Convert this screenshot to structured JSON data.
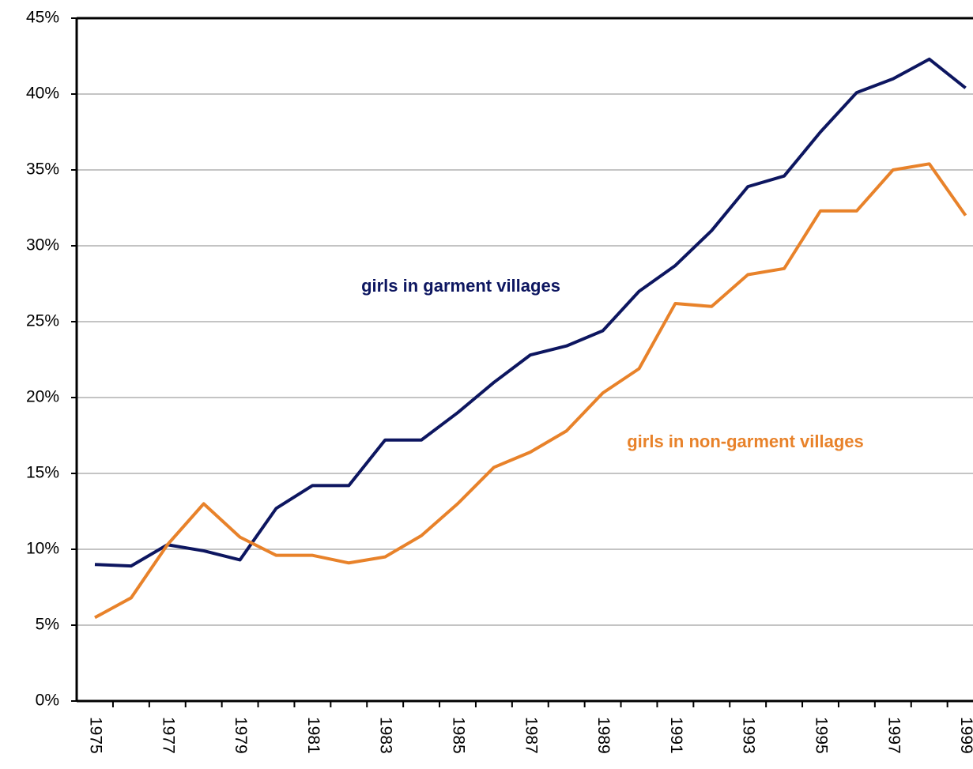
{
  "chart_data": {
    "type": "line",
    "categories": [
      "1975",
      null,
      "1977",
      null,
      "1979",
      null,
      "1981",
      null,
      "1983",
      null,
      "1985",
      null,
      "1987",
      null,
      "1989",
      null,
      "1991",
      null,
      "1993",
      null,
      "1995",
      null,
      "1997",
      null,
      "1999"
    ],
    "series": [
      {
        "name": "girls in garment villages",
        "color": "#0d1660",
        "values": [
          9.0,
          8.9,
          10.3,
          9.9,
          9.3,
          12.7,
          14.2,
          14.2,
          17.2,
          17.2,
          19.0,
          21.0,
          22.8,
          23.4,
          24.4,
          27.0,
          28.7,
          31.0,
          33.9,
          34.6,
          37.5,
          40.1,
          41.0,
          42.3,
          40.4
        ]
      },
      {
        "name": "girls in non-garment villages",
        "color": "#e8822a",
        "values": [
          5.5,
          6.8,
          10.3,
          13.0,
          10.8,
          9.6,
          9.6,
          9.1,
          9.5,
          10.9,
          13.0,
          15.4,
          16.4,
          17.8,
          20.3,
          21.9,
          26.2,
          26.0,
          28.1,
          28.5,
          32.3,
          32.3,
          35.0,
          35.4,
          32.0
        ]
      }
    ],
    "ylim": [
      0,
      45
    ],
    "yticks": [
      {
        "value": 0,
        "label": "0%"
      },
      {
        "value": 5,
        "label": "5%"
      },
      {
        "value": 10,
        "label": "10%"
      },
      {
        "value": 15,
        "label": "15%"
      },
      {
        "value": 20,
        "label": "20%"
      },
      {
        "value": 25,
        "label": "25%"
      },
      {
        "value": 30,
        "label": "30%"
      },
      {
        "value": 35,
        "label": "35%"
      },
      {
        "value": 40,
        "label": "40%"
      },
      {
        "value": 45,
        "label": "45%"
      }
    ],
    "grid": true
  }
}
